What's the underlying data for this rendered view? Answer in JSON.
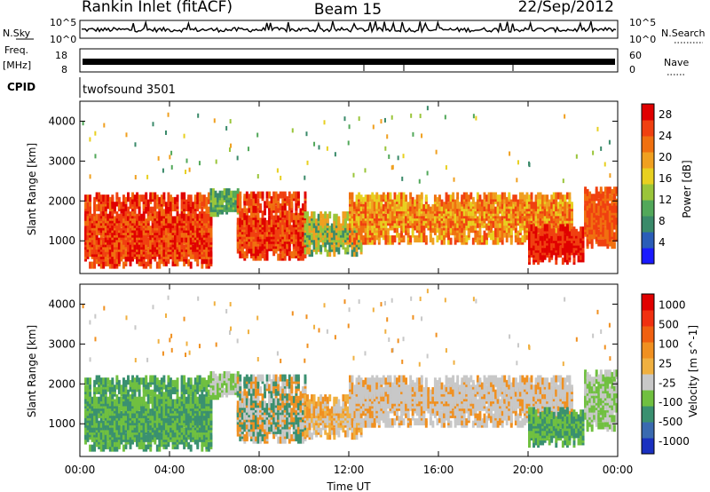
{
  "header": {
    "station": "Rankin Inlet (fitACF)",
    "beam": "Beam 15",
    "date": "22/Sep/2012"
  },
  "colors": {
    "background": "#ffffff",
    "axis": "#000000",
    "ground_scatter": "#c8c8c8",
    "power_scale": [
      "#1a1aff",
      "#2a5db8",
      "#3a8a6a",
      "#52a85a",
      "#9ac53a",
      "#e8d020",
      "#f0a020",
      "#f07010",
      "#f04010",
      "#e00000"
    ],
    "velocity_scale": [
      "#e00000",
      "#f03010",
      "#f06010",
      "#f09020",
      "#f0b040",
      "#c8c8c8",
      "#70c040",
      "#3a9070",
      "#3a6ab0",
      "#1a30c0"
    ]
  },
  "chart_data": [
    {
      "type": "line",
      "name": "nsky-nsearch",
      "ylabel_left": "N.Sky",
      "ylabel_right": "N.Search",
      "yticks_left": [
        "10^5",
        "10^0"
      ],
      "yticks_right": [
        "10^5",
        "10^0"
      ],
      "scale": "log"
    },
    {
      "type": "line",
      "name": "freq-nave",
      "ylabel_left_top": "Freq.",
      "ylabel_left_bottom": "[MHz]",
      "ylabel_right": "Nave",
      "yticks_left": [
        "18",
        "8"
      ],
      "yticks_right": [
        "60",
        "0"
      ],
      "cpid_label": "CPID",
      "cpid_value": "twofsound 3501"
    },
    {
      "type": "heatmap",
      "name": "power",
      "ylabel": "Slant Range [km]",
      "yticks": [
        "1000",
        "2000",
        "3000",
        "4000"
      ],
      "ylim": [
        180,
        4500
      ],
      "xlim_hours": [
        0,
        24
      ],
      "colorbar_label": "Power [dB]",
      "colorbar_ticks": [
        "4",
        "8",
        "12",
        "16",
        "20",
        "24",
        "28"
      ]
    },
    {
      "type": "heatmap",
      "name": "velocity",
      "ylabel": "Slant Range [km]",
      "yticks": [
        "1000",
        "2000",
        "3000",
        "4000"
      ],
      "ylim": [
        180,
        4500
      ],
      "xlim_hours": [
        0,
        24
      ],
      "colorbar_label": "Velocity [m s^-1]",
      "colorbar_ticks": [
        "1000",
        "500",
        "100",
        "25",
        "-25",
        "-100",
        "-500",
        "-1000"
      ]
    }
  ],
  "time_axis": {
    "ticks": [
      "00:00",
      "04:00",
      "08:00",
      "12:00",
      "16:00",
      "20:00",
      "00:00"
    ],
    "label": "Time UT"
  }
}
